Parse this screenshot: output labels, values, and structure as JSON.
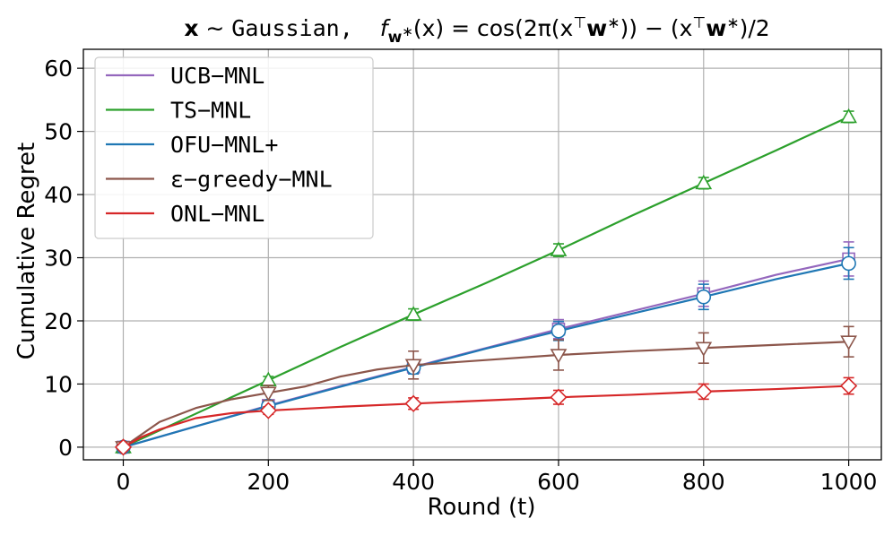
{
  "chart_data": {
    "type": "line",
    "title": {
      "x_bold": "x",
      "tilde": " ∼ ",
      "distribution": "Gaussian,",
      "f": "f",
      "f_sub_w": "w",
      "f_sub_star": "∗",
      "lhs_args": "(x) = cos(2π(x",
      "top": "⊤",
      "w": "w",
      "star": "∗",
      "mid": ")) − (x",
      "end": ")/2"
    },
    "xlabel": "Round (t)",
    "ylabel": "Cumulative Regret",
    "xlim": [
      -55,
      1045
    ],
    "ylim": [
      -2,
      63
    ],
    "xticks": [
      0,
      200,
      400,
      600,
      800,
      1000
    ],
    "yticks": [
      0,
      10,
      20,
      30,
      40,
      50,
      60
    ],
    "grid": true,
    "legend_position": "top-left",
    "series": [
      {
        "name": "UCB−MNL",
        "color": "#9467bd",
        "marker": "square",
        "curve_x": [
          0,
          100,
          200,
          300,
          400,
          500,
          600,
          700,
          800,
          900,
          1000
        ],
        "curve_y": [
          0,
          3.3,
          6.6,
          9.7,
          12.7,
          15.7,
          18.7,
          21.5,
          24.3,
          27.3,
          29.8
        ],
        "markers_x": [
          0,
          200,
          400,
          600,
          800,
          1000
        ],
        "markers_y": [
          0,
          6.6,
          12.7,
          18.7,
          24.3,
          29.8
        ],
        "errors": [
          0,
          0.5,
          1.0,
          1.5,
          2.0,
          2.7
        ]
      },
      {
        "name": "TS−MNL",
        "color": "#2ca02c",
        "marker": "triangle-up",
        "curve_x": [
          0,
          100,
          200,
          300,
          400,
          500,
          600,
          700,
          800,
          900,
          1000
        ],
        "curve_y": [
          0,
          5.3,
          10.6,
          15.9,
          21.0,
          26.0,
          31.2,
          36.6,
          41.8,
          47.0,
          52.3
        ],
        "markers_x": [
          0,
          200,
          400,
          600,
          800,
          1000
        ],
        "markers_y": [
          0,
          10.6,
          21.0,
          31.2,
          41.8,
          52.3
        ],
        "errors": [
          0,
          0.6,
          0.9,
          1.0,
          0.9,
          0.9
        ]
      },
      {
        "name": "OFU−MNL+",
        "color": "#1f77b4",
        "marker": "circle",
        "curve_x": [
          0,
          100,
          200,
          300,
          400,
          500,
          600,
          700,
          800,
          900,
          1000
        ],
        "curve_y": [
          0,
          3.3,
          6.5,
          9.6,
          12.6,
          15.6,
          18.4,
          21.1,
          23.8,
          26.6,
          29.1
        ],
        "markers_x": [
          0,
          200,
          400,
          600,
          800,
          1000
        ],
        "markers_y": [
          0,
          6.5,
          12.6,
          18.4,
          23.8,
          29.1
        ],
        "errors": [
          0,
          0.5,
          1.0,
          1.5,
          2.0,
          2.5
        ]
      },
      {
        "name": "ε−greedy−MNL",
        "color": "#8c564b",
        "marker": "triangle-down",
        "curve_x": [
          0,
          50,
          100,
          150,
          200,
          250,
          300,
          350,
          400,
          500,
          600,
          700,
          800,
          900,
          1000
        ],
        "curve_y": [
          0,
          4.0,
          6.2,
          7.6,
          8.6,
          9.6,
          11.2,
          12.3,
          13.0,
          13.8,
          14.6,
          15.2,
          15.7,
          16.2,
          16.7
        ],
        "markers_x": [
          0,
          200,
          400,
          600,
          800,
          1000
        ],
        "markers_y": [
          0,
          8.6,
          13.0,
          14.6,
          15.7,
          16.7
        ],
        "errors": [
          0,
          1.2,
          2.2,
          2.4,
          2.4,
          2.4
        ]
      },
      {
        "name": "ONL−MNL",
        "color": "#d62728",
        "marker": "diamond",
        "curve_x": [
          0,
          25,
          50,
          100,
          150,
          200,
          300,
          400,
          500,
          600,
          700,
          800,
          900,
          1000
        ],
        "curve_y": [
          0,
          1.6,
          2.8,
          4.6,
          5.4,
          5.8,
          6.4,
          6.9,
          7.4,
          7.9,
          8.3,
          8.8,
          9.2,
          9.7
        ],
        "markers_x": [
          0,
          200,
          400,
          600,
          800,
          1000
        ],
        "markers_y": [
          0,
          5.8,
          6.9,
          7.9,
          8.8,
          9.7
        ],
        "errors": [
          0,
          0.6,
          0.9,
          1.1,
          1.2,
          1.3
        ]
      }
    ]
  }
}
